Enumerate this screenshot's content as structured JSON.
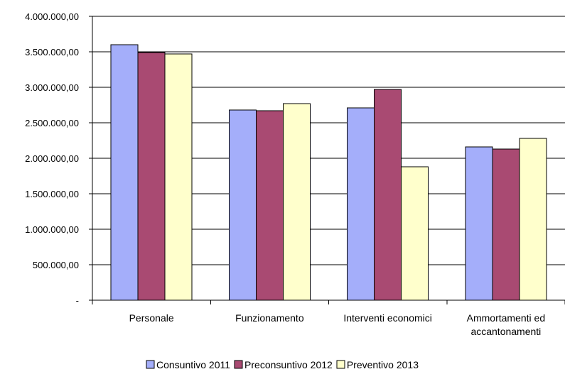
{
  "chart_data": {
    "type": "bar",
    "categories": [
      [
        "Personale"
      ],
      [
        "Funzionamento"
      ],
      [
        "Interventi economici"
      ],
      [
        "Ammortamenti ed",
        "accantonamenti"
      ]
    ],
    "series": [
      {
        "name": "Consuntivo 2011",
        "color": "#A4AEFA",
        "values": [
          3600000,
          2680000,
          2710000,
          2160000
        ]
      },
      {
        "name": "Preconsuntivo 2012",
        "color": "#A94A72",
        "values": [
          3490000,
          2670000,
          2970000,
          2130000
        ]
      },
      {
        "name": "Preventivo 2013",
        "color": "#FFFFCC",
        "values": [
          3470000,
          2770000,
          1880000,
          2280000
        ]
      }
    ],
    "ylim": [
      0,
      4000000
    ],
    "yticks": [
      {
        "value": 4000000,
        "label": "4.000.000,00"
      },
      {
        "value": 3500000,
        "label": "3.500.000,00"
      },
      {
        "value": 3000000,
        "label": "3.000.000,00"
      },
      {
        "value": 2500000,
        "label": "2.500.000,00"
      },
      {
        "value": 2000000,
        "label": "2.000.000,00"
      },
      {
        "value": 1500000,
        "label": "1.500.000,00"
      },
      {
        "value": 1000000,
        "label": "1.000.000,00"
      },
      {
        "value": 500000,
        "label": "500.000,00"
      },
      {
        "value": 0,
        "label": "-"
      }
    ],
    "grid": true,
    "legend_position": "bottom"
  }
}
